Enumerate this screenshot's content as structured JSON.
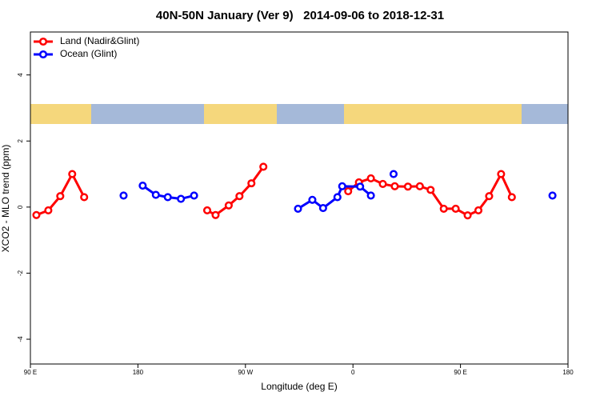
{
  "chart_data": {
    "type": "line",
    "title": "40N-50N January (Ver 9)   2014-09-06 to 2018-12-31",
    "xlabel": "Longitude (deg E)",
    "ylabel": "XCO2 - MLO trend (ppm)",
    "xlim": [
      90,
      540
    ],
    "ylim": [
      -4.75,
      5.3
    ],
    "xticks": [
      {
        "value": 90,
        "label": "90 E"
      },
      180,
      {
        "value": 270,
        "label": "90 W"
      },
      {
        "value": 360,
        "label": "0"
      },
      {
        "value": 450,
        "label": "90 E"
      },
      {
        "value": 540,
        "label": "180"
      }
    ],
    "yticks": [
      -4,
      -2,
      0,
      2,
      4
    ],
    "legend": "top-left",
    "series": [
      {
        "name": "Land (Nadir&Glint)",
        "color": "#ff0000",
        "x": [
          95,
          105,
          115,
          125,
          135,
          null,
          238,
          245,
          256,
          265,
          275,
          285,
          null,
          356,
          365,
          375,
          385,
          395,
          406,
          416,
          425,
          436,
          446,
          456,
          465,
          474,
          484,
          493
        ],
        "values": [
          -0.24,
          -0.1,
          0.33,
          1.0,
          0.3,
          null,
          -0.1,
          -0.24,
          0.05,
          0.33,
          0.72,
          1.22,
          null,
          0.48,
          0.75,
          0.87,
          0.7,
          0.63,
          0.62,
          0.63,
          0.52,
          -0.05,
          -0.05,
          -0.25,
          -0.1,
          0.33,
          1.0,
          0.3
        ]
      },
      {
        "name": "Ocean (Glint)",
        "color": "#0000ff",
        "x": [
          168,
          null,
          184,
          195,
          205,
          216,
          227,
          null,
          314,
          326,
          335,
          347,
          351,
          366,
          375,
          null,
          394,
          null,
          527
        ],
        "values": [
          0.35,
          null,
          0.65,
          0.37,
          0.3,
          0.25,
          0.35,
          null,
          -0.05,
          0.22,
          -0.03,
          0.3,
          0.63,
          0.62,
          0.35,
          null,
          1.0,
          null,
          0.35
        ]
      }
    ]
  }
}
